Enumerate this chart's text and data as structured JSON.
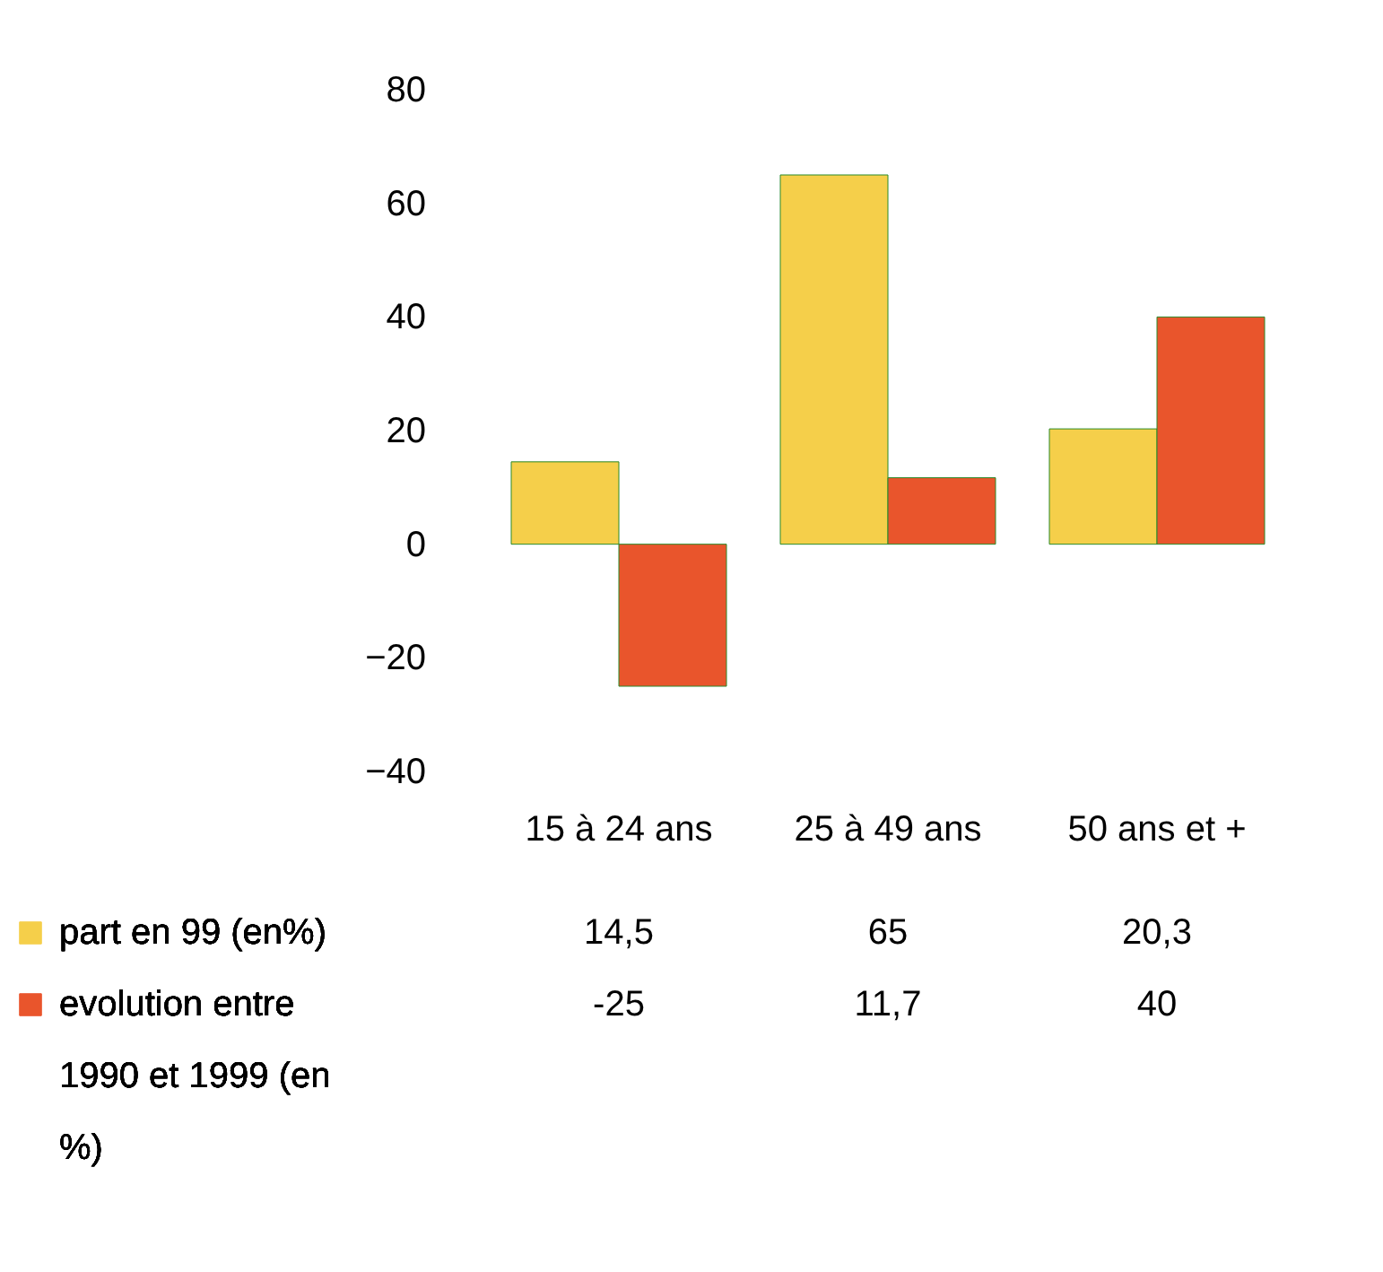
{
  "chart_data": {
    "type": "bar",
    "categories": [
      "15 à 24 ans",
      "25 à 49 ans",
      "50 ans et +"
    ],
    "series": [
      {
        "name": "part en 99 (en%)",
        "color": "#f5cf4a",
        "values": [
          14.5,
          65,
          20.3
        ],
        "value_labels": [
          "14,5",
          "65",
          "20,3"
        ]
      },
      {
        "name": "evolution entre 1990 et 1999 (en %)",
        "color": "#e9552c",
        "values": [
          -25,
          11.7,
          40
        ],
        "value_labels": [
          "-25",
          "11,7",
          "40"
        ]
      }
    ],
    "ylim": [
      -40,
      80
    ],
    "yticks": [
      -40,
      -20,
      0,
      20,
      40,
      60,
      80
    ],
    "grid": false,
    "legend": "bottom"
  }
}
